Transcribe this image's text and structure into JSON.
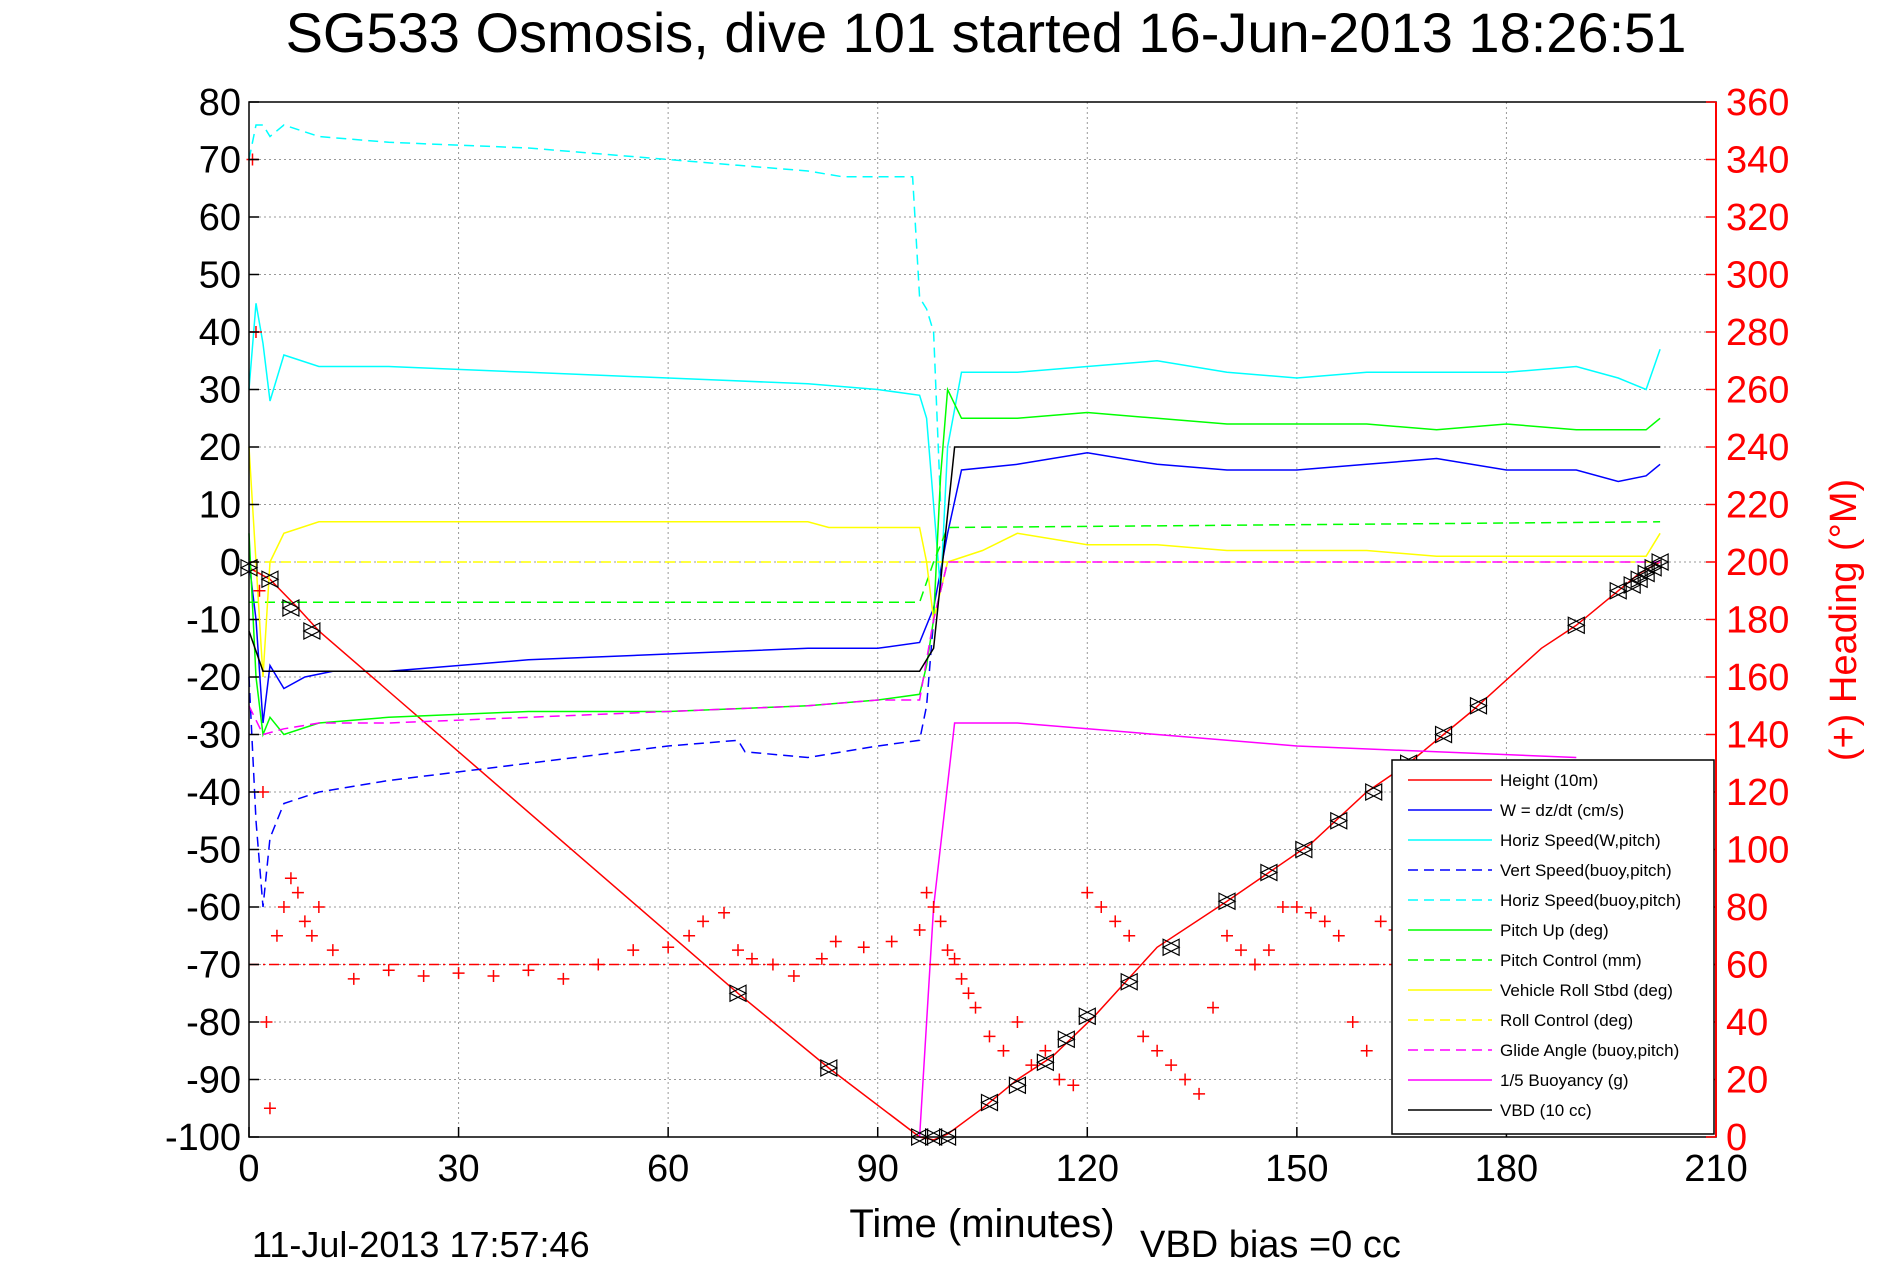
{
  "chart_data": {
    "type": "line",
    "title": "SG533 Osmosis, dive 101 started 16-Jun-2013 18:26:51",
    "xlabel": "Time (minutes)",
    "ylabel": "",
    "ylabel_right": "(+) Heading (°M)",
    "xlim": [
      0,
      210
    ],
    "ylim": [
      -100,
      80
    ],
    "ylim_right": [
      0,
      360
    ],
    "xticks": [
      "0",
      "30",
      "60",
      "90",
      "120",
      "150",
      "180",
      "210"
    ],
    "yticks": [
      "80",
      "70",
      "60",
      "50",
      "40",
      "30",
      "20",
      "10",
      "0",
      "-10",
      "-20",
      "-30",
      "-40",
      "-50",
      "-60",
      "-70",
      "-80",
      "-90",
      "-100"
    ],
    "yticks_right": [
      "360",
      "340",
      "320",
      "300",
      "280",
      "260",
      "240",
      "220",
      "200",
      "180",
      "160",
      "140",
      "120",
      "100",
      "80",
      "60",
      "40",
      "20",
      "0"
    ],
    "grid": true,
    "legend_position": "bottom-right",
    "footer_left": "11-Jul-2013 17:57:46",
    "footer_right": "VBD bias =0 cc",
    "colors": {
      "height": "#ff0000",
      "w": "#0000ff",
      "horiz": "#00ffff",
      "pitch": "#00ff00",
      "roll": "#ffff00",
      "glide": "#ff00ff",
      "vbd": "#000000",
      "heading": "#ff0000",
      "right_axis": "#ff0000"
    },
    "series": [
      {
        "name": "Height (10m)",
        "style": "solid",
        "color": "#ff0000",
        "x": [
          0,
          3,
          7,
          10,
          70,
          83,
          96,
          98,
          100,
          105,
          110,
          115,
          121,
          130,
          140,
          146,
          152,
          160,
          166,
          175,
          185,
          190,
          196,
          199,
          202
        ],
        "y": [
          -1,
          -3,
          -8,
          -12,
          -75,
          -88,
          -100,
          -100.5,
          -99.5,
          -95,
          -90,
          -86,
          -79,
          -67,
          -59,
          -54,
          -49,
          -40,
          -35,
          -26,
          -15,
          -11,
          -5,
          -2,
          0
        ]
      },
      {
        "name": "W = dz/dt (cm/s)",
        "style": "solid",
        "color": "#0000ff",
        "x": [
          0,
          1,
          2,
          3,
          5,
          8,
          12,
          20,
          40,
          60,
          80,
          90,
          96,
          98,
          100,
          102,
          110,
          120,
          130,
          140,
          150,
          160,
          170,
          180,
          190,
          196,
          200,
          202
        ],
        "y": [
          0,
          -10,
          -28,
          -18,
          -22,
          -20,
          -19,
          -19,
          -17,
          -16,
          -15,
          -15,
          -14,
          -8,
          5,
          16,
          17,
          19,
          17,
          16,
          16,
          17,
          18,
          16,
          16,
          14,
          15,
          17
        ]
      },
      {
        "name": "Horiz Speed(W,pitch)",
        "style": "solid",
        "color": "#00ffff",
        "x": [
          0,
          1,
          2,
          3,
          5,
          10,
          20,
          40,
          60,
          80,
          90,
          96,
          97,
          98,
          99,
          100,
          102,
          110,
          120,
          130,
          140,
          150,
          160,
          170,
          180,
          190,
          196,
          200,
          202
        ],
        "y": [
          30,
          45,
          38,
          28,
          36,
          34,
          34,
          33,
          32,
          31,
          30,
          29,
          25,
          10,
          -5,
          20,
          33,
          33,
          34,
          35,
          33,
          32,
          33,
          33,
          33,
          34,
          32,
          30,
          37
        ]
      },
      {
        "name": "Vert Speed(buoy,pitch)",
        "style": "dashed",
        "color": "#0000ff",
        "x": [
          0,
          1,
          2,
          3,
          5,
          10,
          20,
          40,
          60,
          70,
          71,
          80,
          90,
          96,
          97,
          98,
          100
        ],
        "y": [
          -20,
          -45,
          -60,
          -48,
          -42,
          -40,
          -38,
          -35,
          -32,
          -31,
          -33,
          -34,
          -32,
          -31,
          -25,
          -10,
          0
        ]
      },
      {
        "name": "Horiz Speed(buoy,pitch)",
        "style": "dashed",
        "color": "#00ffff",
        "x": [
          0,
          1,
          2,
          3,
          5,
          10,
          20,
          40,
          60,
          70,
          80,
          85,
          90,
          95,
          96,
          97,
          98,
          99
        ],
        "y": [
          70,
          76,
          76,
          74,
          76,
          74,
          73,
          72,
          70,
          69,
          68,
          67,
          67,
          67,
          46,
          44,
          40,
          10
        ]
      },
      {
        "name": "Pitch Up (deg)",
        "style": "solid",
        "color": "#00ff00",
        "x": [
          0,
          1,
          2,
          3,
          5,
          10,
          20,
          40,
          60,
          80,
          90,
          96,
          97,
          98,
          99,
          100,
          102,
          110,
          120,
          130,
          140,
          150,
          160,
          170,
          180,
          190,
          196,
          200,
          202
        ],
        "y": [
          5,
          -20,
          -30,
          -27,
          -30,
          -28,
          -27,
          -26,
          -26,
          -25,
          -24,
          -23,
          -18,
          -10,
          15,
          30,
          25,
          25,
          26,
          25,
          24,
          24,
          24,
          23,
          24,
          23,
          23,
          23,
          25
        ]
      },
      {
        "name": "Pitch Control (mm)",
        "style": "dashed",
        "color": "#00ff00",
        "x": [
          0,
          2,
          96,
          98,
          100,
          202
        ],
        "y": [
          -7,
          -7,
          -7,
          0,
          6,
          7
        ]
      },
      {
        "name": "Vehicle Roll Stbd (deg)",
        "style": "solid",
        "color": "#ffff00",
        "x": [
          0,
          2,
          3,
          5,
          10,
          20,
          40,
          60,
          80,
          83,
          90,
          96,
          97,
          98,
          100,
          105,
          110,
          120,
          130,
          140,
          150,
          160,
          170,
          180,
          190,
          196,
          200,
          202
        ],
        "y": [
          20,
          -20,
          0,
          5,
          7,
          7,
          7,
          7,
          7,
          6,
          6,
          6,
          0,
          -10,
          0,
          2,
          5,
          3,
          3,
          2,
          2,
          2,
          1,
          1,
          1,
          1,
          1,
          5
        ]
      },
      {
        "name": "Roll Control (deg)",
        "style": "dashed",
        "color": "#ffff00",
        "x": [
          0,
          97,
          100,
          202
        ],
        "y": [
          0,
          0,
          0,
          0
        ]
      },
      {
        "name": "Glide Angle (buoy,pitch)",
        "style": "dashed",
        "color": "#ff00ff",
        "x": [
          0,
          2,
          5,
          10,
          20,
          40,
          60,
          80,
          90,
          96,
          98,
          100,
          202
        ],
        "y": [
          -25,
          -30,
          -29,
          -28,
          -28,
          -27,
          -26,
          -25,
          -24,
          -24,
          -10,
          0,
          0
        ]
      },
      {
        "name": "1/5 Buoyancy (g)",
        "style": "solid",
        "color": "#ff00ff",
        "x": [
          96,
          98,
          101,
          110,
          130,
          150,
          170,
          190
        ],
        "y": [
          -100,
          -60,
          -28,
          -28,
          -30,
          -32,
          -33,
          -34
        ]
      },
      {
        "name": "VBD (10 cc)",
        "style": "solid",
        "color": "#000000",
        "x": [
          0,
          2,
          96,
          98,
          101,
          202
        ],
        "y": [
          -12,
          -19,
          -19,
          -15,
          20,
          20
        ]
      }
    ],
    "heading_marks": {
      "name": "Heading",
      "style": "plus",
      "color": "#ff0000",
      "x": [
        0.5,
        1,
        1.5,
        2,
        2.5,
        3,
        4,
        5,
        6,
        7,
        8,
        9,
        10,
        12,
        15,
        20,
        25,
        30,
        35,
        40,
        45,
        50,
        55,
        60,
        63,
        65,
        68,
        70,
        72,
        75,
        78,
        82,
        84,
        88,
        92,
        96,
        97,
        98,
        99,
        100,
        101,
        102,
        103,
        104,
        106,
        108,
        110,
        112,
        114,
        116,
        118,
        120,
        122,
        124,
        126,
        128,
        130,
        132,
        134,
        136,
        138,
        140,
        142,
        144,
        146,
        148,
        150,
        152,
        154,
        156,
        158,
        160,
        162,
        164,
        166,
        168,
        170,
        172,
        174,
        176,
        178,
        180,
        182,
        184,
        186,
        188,
        190,
        192,
        194,
        196,
        198,
        200
      ],
      "y": [
        340,
        280,
        190,
        120,
        40,
        10,
        70,
        80,
        90,
        85,
        75,
        70,
        80,
        65,
        55,
        58,
        56,
        57,
        56,
        58,
        55,
        60,
        65,
        66,
        70,
        75,
        78,
        65,
        62,
        60,
        56,
        62,
        68,
        66,
        68,
        72,
        85,
        80,
        75,
        65,
        62,
        55,
        50,
        45,
        35,
        30,
        40,
        25,
        30,
        20,
        18,
        85,
        80,
        75,
        70,
        35,
        30,
        25,
        20,
        15,
        45,
        70,
        65,
        60,
        65,
        80,
        80,
        78,
        75,
        70,
        40,
        30,
        75,
        72,
        70,
        65,
        60,
        55,
        50,
        45,
        40,
        35,
        30,
        25,
        20,
        60,
        65,
        70,
        65,
        60,
        55,
        50
      ]
    },
    "heading_target": 60,
    "vbd_markers": {
      "x": [
        0,
        3,
        6,
        9,
        70,
        83,
        96,
        98,
        100,
        106,
        110,
        114,
        117,
        120,
        126,
        132,
        140,
        146,
        151,
        156,
        161,
        166,
        171,
        176,
        190,
        196,
        198,
        199,
        200,
        201,
        202
      ],
      "y": [
        -1,
        -3,
        -8,
        -12,
        -75,
        -88,
        -100,
        -100,
        -100,
        -94,
        -91,
        -87,
        -83,
        -79,
        -73,
        -67,
        -59,
        -54,
        -50,
        -45,
        -40,
        -35,
        -30,
        -25,
        -11,
        -5,
        -4,
        -3,
        -2,
        -1,
        0
      ]
    }
  }
}
